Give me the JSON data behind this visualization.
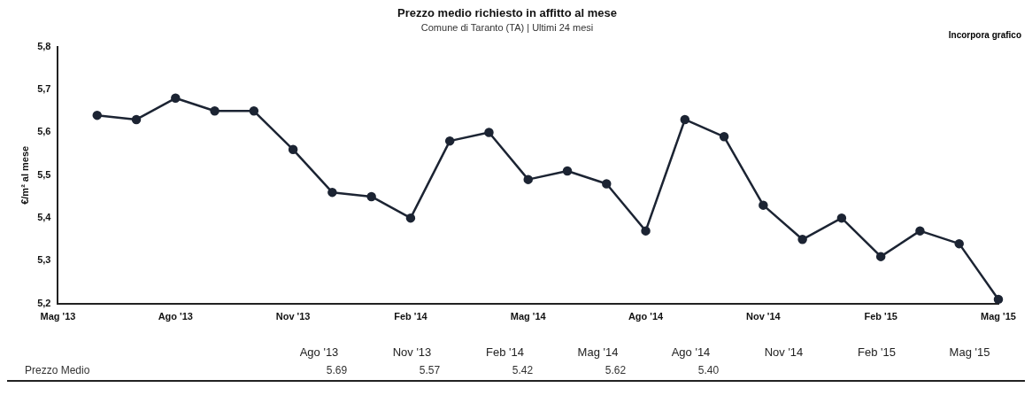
{
  "chart_data": {
    "type": "line",
    "title": "Prezzo medio richiesto in affitto al mese",
    "subtitle": "Comune di Taranto (TA) | Ultimi 24 mesi",
    "ylabel": "€/m² al mese",
    "categories": [
      "Mag '13",
      null,
      null,
      "Ago '13",
      null,
      null,
      "Nov '13",
      null,
      null,
      "Feb '14",
      null,
      null,
      "Mag '14",
      null,
      null,
      "Ago '14",
      null,
      null,
      "Nov '14",
      null,
      null,
      "Feb '15",
      null,
      null,
      "Mag '15"
    ],
    "series": [
      {
        "color": "#1c2433",
        "values": [
          null,
          5.64,
          5.63,
          5.68,
          5.65,
          5.65,
          5.56,
          5.46,
          5.45,
          5.4,
          5.58,
          5.6,
          5.49,
          5.51,
          5.48,
          5.37,
          5.63,
          5.59,
          5.43,
          5.35,
          5.4,
          5.31,
          5.37,
          5.34,
          5.21
        ]
      }
    ],
    "ylim": [
      5.2,
      5.8
    ],
    "yticks": [
      {
        "value": 5.2,
        "label": "5,2"
      },
      {
        "value": 5.3,
        "label": "5,3"
      },
      {
        "value": 5.4,
        "label": "5,4"
      },
      {
        "value": 5.5,
        "label": "5,5"
      },
      {
        "value": 5.6,
        "label": "5,6"
      },
      {
        "value": 5.7,
        "label": "5,7"
      },
      {
        "value": 5.8,
        "label": "5,8"
      }
    ],
    "grid": false,
    "legend": false,
    "marker": "circle",
    "line_style": "solid",
    "annotations": [
      "Incorpora grafico",
      "Prezzo Medio",
      "Ago '13",
      "Nov '13",
      "Feb '14",
      "Mag '14",
      "Ago '14",
      "Nov '14",
      "Feb '15",
      "Mag '15",
      "5.69",
      "5.57",
      "5.42",
      "5.62",
      "5.40"
    ]
  }
}
